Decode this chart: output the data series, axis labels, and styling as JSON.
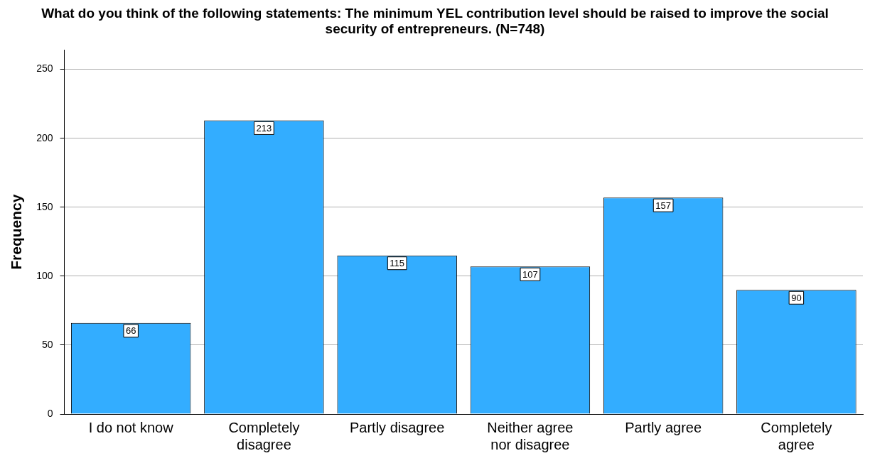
{
  "chart_data": {
    "type": "bar",
    "title": "What do you think of the following statements: The minimum YEL contribution level should be raised to improve the social security of entrepreneurs. (N=748)",
    "ylabel": "Frequency",
    "categories": [
      "I do not know",
      "Completely\ndisagree",
      "Partly disagree",
      "Neither agree\nnor disagree",
      "Partly agree",
      "Completely\nagree"
    ],
    "values": [
      66,
      213,
      115,
      107,
      157,
      90
    ],
    "color": "#33adff",
    "ylim": [
      0,
      264
    ],
    "yticks": [
      0,
      50,
      100,
      150,
      200,
      250
    ],
    "grid": "y",
    "legend": false,
    "data_labels": true
  }
}
